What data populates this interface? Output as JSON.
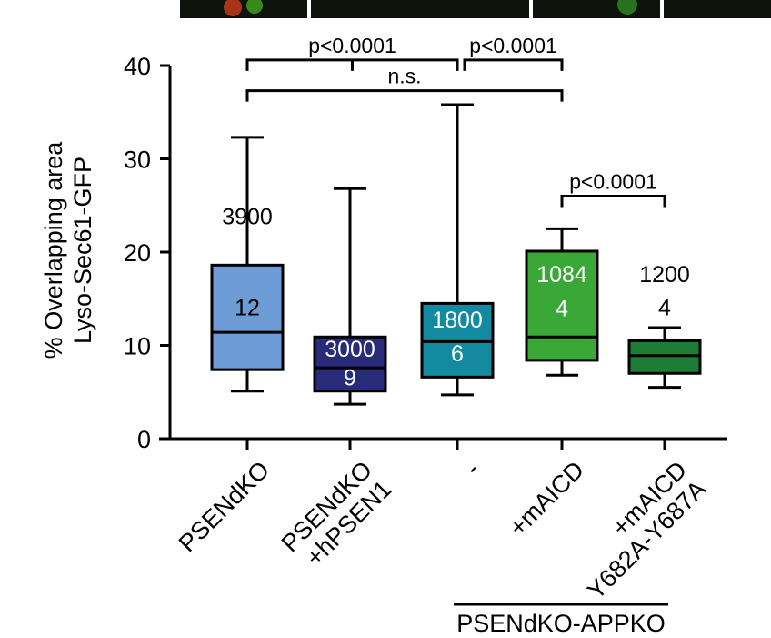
{
  "colors": {
    "PSENdKO": "#6d9bd6",
    "PSENdKO_hPSEN1": "#272b79",
    "minus": "#138aa0",
    "mAICD": "#39a837",
    "mAICD_Y682A": "#1e7d34",
    "micrograph": "#0e140c"
  },
  "chart_data": {
    "type": "box",
    "ylabel_line1": "% Overlapping area",
    "ylabel_line2": "Lyso-Sec61-GFP",
    "ylim": [
      0,
      40
    ],
    "yticks": [
      "0",
      "10",
      "20",
      "30",
      "40"
    ],
    "categories": [
      {
        "label_lines": [
          "PSENdKO"
        ],
        "color_key": "PSENdKO",
        "min": 5.1,
        "q1": 7.4,
        "median": 11.4,
        "q3": 18.6,
        "max": 32.3,
        "ann_top": "3900",
        "ann_bottom": "12",
        "ann_color": "#000000",
        "ann_top_y": 23.0,
        "ann_bottom_y": 13.2
      },
      {
        "label_lines": [
          "PSENdKO",
          "+hPSEN1"
        ],
        "color_key": "PSENdKO_hPSEN1",
        "min": 3.7,
        "q1": 5.1,
        "median": 7.6,
        "q3": 10.9,
        "max": 26.8,
        "ann_top": "3000",
        "ann_bottom": "9",
        "ann_color": "#ffffff",
        "ann_top_y": 8.8,
        "ann_bottom_y": 5.7
      },
      {
        "label_lines": [
          "-"
        ],
        "color_key": "minus",
        "min": 4.7,
        "q1": 6.6,
        "median": 10.4,
        "q3": 14.5,
        "max": 35.8,
        "ann_top": "1800",
        "ann_bottom": "6",
        "ann_color": "#ffffff",
        "ann_top_y": 11.9,
        "ann_bottom_y": 8.3
      },
      {
        "label_lines": [
          "+mAICD"
        ],
        "color_key": "mAICD",
        "min": 6.8,
        "q1": 8.4,
        "median": 10.9,
        "q3": 20.1,
        "max": 22.5,
        "ann_top": "1084",
        "ann_bottom": "4",
        "ann_color": "#ffffff",
        "ann_top_y": 16.8,
        "ann_bottom_y": 13.1
      },
      {
        "label_lines": [
          "+mAICD",
          "Y682A-Y687A"
        ],
        "color_key": "mAICD_Y682A",
        "min": 5.5,
        "q1": 7.0,
        "median": 8.9,
        "q3": 10.5,
        "max": 11.9,
        "ann_top": "1200",
        "ann_bottom": "4",
        "ann_color": "#000000",
        "ann_top_y": 16.8,
        "ann_bottom_y": 13.2
      }
    ],
    "significance": [
      {
        "from": 0,
        "to": 2,
        "label": "p<0.0001",
        "y": 40.6
      },
      {
        "from": 2,
        "to": 3,
        "label": "p<0.0001",
        "y": 40.6
      },
      {
        "from": 0,
        "to": 3,
        "label": "n.s.",
        "y": 37.3
      },
      {
        "from": 3,
        "to": 4,
        "label": "p<0.0001",
        "y": 26.0
      }
    ],
    "group_label": "PSENdKO-APPKO",
    "group_span": [
      2,
      4
    ]
  }
}
